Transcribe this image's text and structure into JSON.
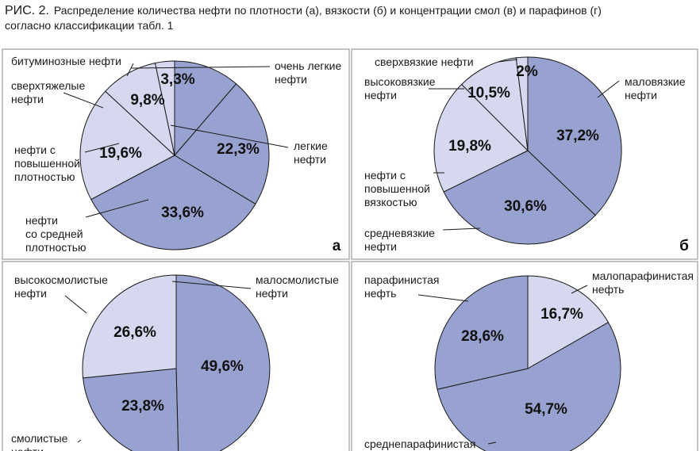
{
  "caption": {
    "fig_label": "РИС. 2.",
    "line1": "Распределение количества нефти по плотности (а), вязкости (б) и концентрации смол (в) и парафинов (г)",
    "line2": "согласно классификации табл. 1"
  },
  "colors": {
    "dark": "#98a2d0",
    "light": "#d5d8ee",
    "stroke": "#1a1a1a",
    "frame": "#8a8a8a"
  },
  "chart_data": [
    {
      "type": "pie",
      "panel_letter": "а",
      "slices": [
        {
          "label_lines": [
            "очень легкие",
            "нефти"
          ],
          "value": 11.3,
          "value_label": "",
          "fill": "dark"
        },
        {
          "label_lines": [
            "легкие",
            "нефти"
          ],
          "value": 22.3,
          "value_label": "22,3%",
          "fill": "dark"
        },
        {
          "label_lines": [
            "нефти",
            "со средней",
            "плотностью"
          ],
          "value": 33.6,
          "value_label": "33,6%",
          "fill": "dark"
        },
        {
          "label_lines": [
            "нефти с",
            "повышенной",
            "плотностью"
          ],
          "value": 19.6,
          "value_label": "19,6%",
          "fill": "light"
        },
        {
          "label_lines": [
            "сверхтяжелые",
            "нефти"
          ],
          "value": 9.8,
          "value_label": "9,8%",
          "fill": "light"
        },
        {
          "label_lines": [
            "битуминозные нефти"
          ],
          "value": 3.3,
          "value_label": "3,3%",
          "fill": "light"
        }
      ]
    },
    {
      "type": "pie",
      "panel_letter": "б",
      "slices": [
        {
          "label_lines": [
            "маловязкие",
            "нефти"
          ],
          "value": 37.2,
          "value_label": "37,2%",
          "fill": "dark"
        },
        {
          "label_lines": [
            "средневязкие",
            "нефти"
          ],
          "value": 30.6,
          "value_label": "30,6%",
          "fill": "dark"
        },
        {
          "label_lines": [
            "нефти с",
            "повышенной",
            "вязкостью"
          ],
          "value": 19.8,
          "value_label": "19,8%",
          "fill": "light"
        },
        {
          "label_lines": [
            "высоковязкие",
            "нефти"
          ],
          "value": 10.5,
          "value_label": "10,5%",
          "fill": "light"
        },
        {
          "label_lines": [
            "сверхвязкие нефти"
          ],
          "value": 2,
          "value_label": "2%",
          "fill": "light"
        }
      ]
    },
    {
      "type": "pie",
      "panel_letter": "",
      "slices": [
        {
          "label_lines": [
            "малосмолистые",
            "нефти"
          ],
          "value": 49.6,
          "value_label": "49,6%",
          "fill": "dark"
        },
        {
          "label_lines": [
            "смолистые",
            "нефти"
          ],
          "value": 23.8,
          "value_label": "23,8%",
          "fill": "dark"
        },
        {
          "label_lines": [
            "высокосмолистые",
            "нефти"
          ],
          "value": 26.6,
          "value_label": "26,6%",
          "fill": "light"
        }
      ]
    },
    {
      "type": "pie",
      "panel_letter": "",
      "slices": [
        {
          "label_lines": [
            "малопарафинистая",
            "нефть"
          ],
          "value": 16.7,
          "value_label": "16,7%",
          "fill": "light"
        },
        {
          "label_lines": [
            "среднепарафинистая"
          ],
          "value": 54.7,
          "value_label": "54,7%",
          "fill": "dark"
        },
        {
          "label_lines": [
            "парафинистая",
            "нефть"
          ],
          "value": 28.6,
          "value_label": "28,6%",
          "fill": "dark"
        }
      ]
    }
  ]
}
